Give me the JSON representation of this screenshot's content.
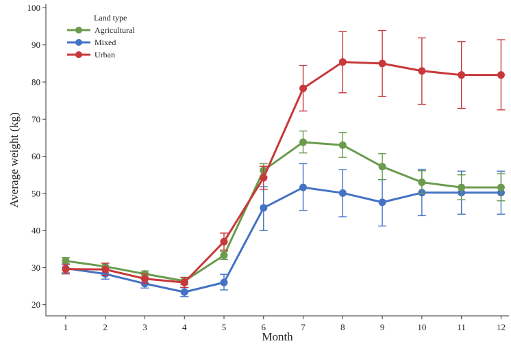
{
  "chart_data": {
    "type": "line",
    "title": "",
    "xlabel": "Month",
    "ylabel": "Average weight (kg)",
    "x": [
      1,
      2,
      3,
      4,
      5,
      6,
      7,
      8,
      9,
      10,
      11,
      12
    ],
    "xlim": [
      0.5,
      12.2
    ],
    "ylim": [
      17,
      101
    ],
    "yticks": [
      20,
      30,
      40,
      50,
      60,
      70,
      80,
      90,
      100
    ],
    "grid": false,
    "legend": {
      "title": "Land type",
      "position": "top-left"
    },
    "series": [
      {
        "name": "Agricultural",
        "color": "#6a9b4e",
        "values": [
          31.8,
          30.3,
          28.3,
          26.4,
          33.3,
          56.2,
          63.8,
          63.0,
          57.2,
          53.0,
          51.6,
          51.6
        ],
        "err_low": [
          30.9,
          29.4,
          27.5,
          25.4,
          32.2,
          54.4,
          60.9,
          59.7,
          53.7,
          50.0,
          48.3,
          48.0
        ],
        "err_high": [
          32.7,
          31.2,
          29.1,
          27.4,
          34.4,
          58.0,
          66.8,
          66.4,
          60.7,
          56.1,
          55.0,
          55.3
        ]
      },
      {
        "name": "Mixed",
        "color": "#4472c4",
        "values": [
          29.8,
          28.3,
          25.7,
          23.4,
          26.0,
          46.1,
          51.6,
          50.1,
          47.6,
          50.2,
          50.2,
          50.2
        ],
        "err_low": [
          28.6,
          26.9,
          24.5,
          22.2,
          24.0,
          40.0,
          45.4,
          43.7,
          41.2,
          44.0,
          44.4,
          44.4
        ],
        "err_high": [
          31.0,
          29.7,
          26.9,
          24.6,
          28.2,
          51.8,
          58.0,
          56.4,
          53.7,
          56.5,
          56.0,
          56.0
        ]
      },
      {
        "name": "Urban",
        "color": "#c8383a",
        "values": [
          29.6,
          29.5,
          27.0,
          26.0,
          37.0,
          54.2,
          78.3,
          85.4,
          85.0,
          83.0,
          81.9,
          81.9
        ],
        "err_low": [
          28.3,
          27.9,
          25.8,
          24.7,
          34.7,
          51.1,
          72.2,
          77.1,
          76.1,
          74.0,
          72.9,
          72.5
        ],
        "err_high": [
          30.9,
          31.2,
          28.3,
          27.4,
          39.3,
          57.3,
          84.5,
          93.6,
          93.9,
          91.9,
          90.9,
          91.4
        ]
      }
    ]
  }
}
